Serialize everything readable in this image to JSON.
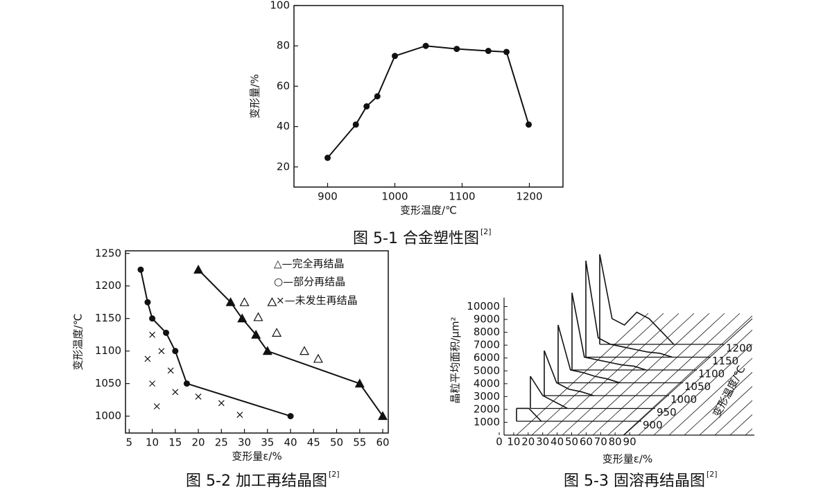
{
  "chart_data": [
    {
      "type": "line",
      "caption": "图 5-1 合金塑性图",
      "caption_ref": "[2]",
      "x_label": "变形温度/℃",
      "y_label": "变形量/%",
      "x": [
        900,
        942,
        958,
        974,
        1000,
        1046,
        1092,
        1139,
        1166,
        1199
      ],
      "values": [
        24.5,
        41,
        50,
        55,
        75,
        80,
        78.5,
        77.5,
        77,
        41
      ],
      "color": "#111111",
      "xlim": [
        850,
        1250
      ],
      "ylim": [
        10,
        100
      ],
      "xticks": [
        900,
        1000,
        1100,
        1200
      ],
      "yticks": [
        20,
        40,
        60,
        80,
        100
      ]
    },
    {
      "type": "scatter",
      "caption": "图 5-2 加工再结晶图",
      "caption_ref": "[2]",
      "x_label": "变形量ε/%",
      "y_label": "变形温度/℃",
      "legend": [
        "△—完全再结晶",
        "○—部分再结晶",
        "×—未发生再结晶"
      ],
      "color": "#111111",
      "series": [
        {
          "marker": "filled-circle",
          "connect": true,
          "x": [
            7.5,
            9,
            10,
            13,
            15,
            17.5,
            40
          ],
          "values": [
            1225,
            1175,
            1150,
            1128,
            1100,
            1050,
            1000
          ]
        },
        {
          "marker": "filled-triangle",
          "connect": true,
          "x": [
            20,
            27,
            29.5,
            32.5,
            35,
            55,
            60
          ],
          "values": [
            1225,
            1175,
            1150,
            1125,
            1100,
            1050,
            1000
          ]
        },
        {
          "marker": "open-triangle",
          "connect": false,
          "x": [
            30,
            33,
            36,
            37,
            43,
            46
          ],
          "values": [
            1175,
            1152,
            1175,
            1128,
            1100,
            1088
          ]
        },
        {
          "marker": "cross",
          "connect": false,
          "x": [
            10,
            12,
            9,
            14,
            10,
            15,
            20,
            25,
            29,
            11
          ],
          "values": [
            1125,
            1100,
            1088,
            1070,
            1050,
            1037,
            1030,
            1020,
            1002,
            1015
          ]
        }
      ],
      "xlim": [
        4.2,
        61.2
      ],
      "ylim": [
        974,
        1254
      ],
      "xticks": [
        5,
        10,
        15,
        20,
        25,
        30,
        35,
        40,
        45,
        50,
        55,
        60
      ],
      "yticks": [
        1000,
        1050,
        1100,
        1150,
        1200,
        1250
      ]
    },
    {
      "type": "waterfall",
      "caption": "图 5-3 固溶再结晶图",
      "caption_ref": "[2]",
      "x_label": "变形量ε/%",
      "y_label": "晶粒平均面积/μm²",
      "z_label": "变形温度/℃",
      "color": "#111111",
      "x": [
        0,
        10,
        20,
        30,
        40,
        50,
        60,
        70,
        80,
        90
      ],
      "series": [
        {
          "name": "900",
          "values": [
            1000,
            1000,
            0,
            null,
            null,
            null,
            null,
            null,
            null,
            null
          ]
        },
        {
          "name": "950",
          "values": [
            2500,
            1000,
            500,
            0,
            null,
            null,
            null,
            null,
            null,
            null
          ]
        },
        {
          "name": "1000",
          "values": [
            3500,
            1000,
            500,
            300,
            0,
            null,
            null,
            null,
            null,
            null
          ]
        },
        {
          "name": "1050",
          "values": [
            4500,
            1000,
            800,
            500,
            300,
            0,
            null,
            null,
            null,
            null
          ]
        },
        {
          "name": "1100",
          "values": [
            6000,
            1000,
            800,
            600,
            400,
            300,
            0,
            null,
            null,
            null
          ]
        },
        {
          "name": "1150",
          "values": [
            7500,
            1500,
            1000,
            800,
            600,
            400,
            300,
            0,
            null,
            null
          ]
        },
        {
          "name": "1200",
          "values": [
            7000,
            2000,
            1500,
            2500,
            2000,
            1000,
            0,
            null,
            null,
            null
          ]
        }
      ],
      "xticks": [
        0,
        10,
        20,
        30,
        40,
        50,
        60,
        70,
        80,
        90
      ],
      "ylim": [
        0,
        10700
      ],
      "yticks": [
        1000,
        2000,
        3000,
        4000,
        5000,
        6000,
        7000,
        8000,
        9000,
        10000
      ]
    }
  ]
}
